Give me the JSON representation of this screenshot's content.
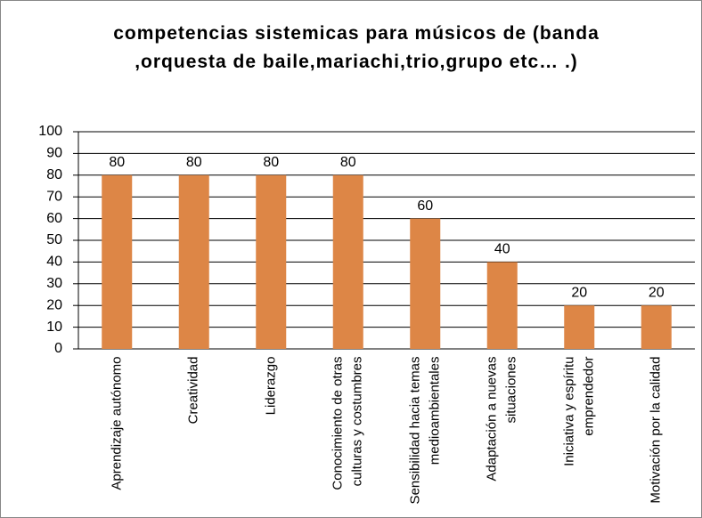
{
  "chart_data": {
    "type": "bar",
    "title": "competencias sistemicas  para músicos de (banda ,orquesta de baile,mariachi,trio,grupo etc… .)",
    "categories": [
      "Aprendizaje autónomo",
      "Creatividad",
      "Liderazgo",
      "Conocimiento de otras culturas y costumbres",
      "Sensibilidad hacia temas medioambientales",
      "Adaptación a nuevas situaciones",
      "Iniciativa y espíritu emprendedor",
      "Motivación por la calidad"
    ],
    "values": [
      80,
      80,
      80,
      80,
      60,
      40,
      20,
      20
    ],
    "color": "#dd8646",
    "ylim": [
      0,
      100
    ],
    "yticks": [
      0,
      10,
      20,
      30,
      40,
      50,
      60,
      70,
      80,
      90,
      100
    ],
    "grid": true
  }
}
